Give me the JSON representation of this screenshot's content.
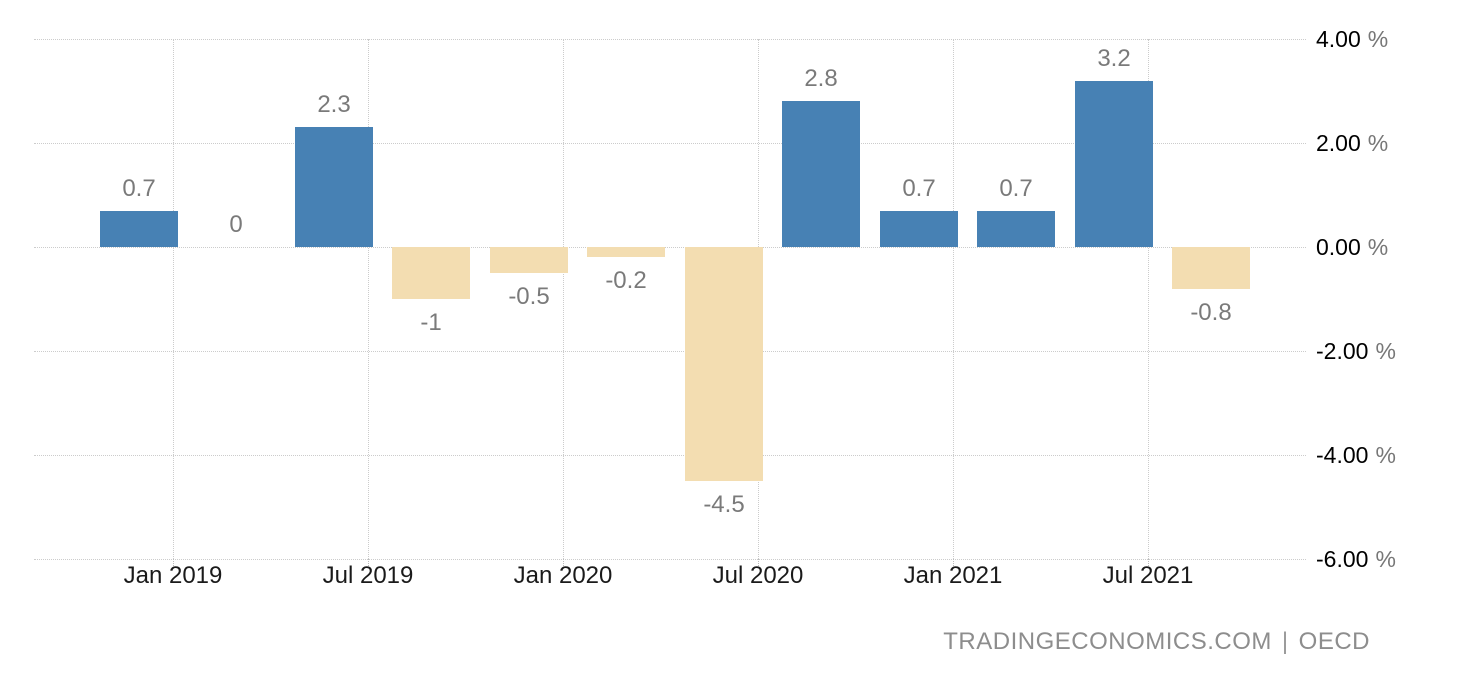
{
  "watermark": {
    "site": "TRADINGECONOMICS.COM",
    "separator": "|",
    "source": "OECD"
  },
  "chart_data": {
    "type": "bar",
    "values": [
      0.7,
      0,
      2.3,
      -1,
      -0.5,
      -0.2,
      -4.5,
      2.8,
      0.7,
      0.7,
      3.2,
      -0.8
    ],
    "bar_labels": [
      "0.7",
      "0",
      "2.3",
      "-1",
      "-0.5",
      "-0.2",
      "-4.5",
      "2.8",
      "0.7",
      "0.7",
      "3.2",
      "-0.8"
    ],
    "x_axis": {
      "tick_labels": [
        "Jan 2019",
        "Jul 2019",
        "Jan 2020",
        "Jul 2020",
        "Jan 2021",
        "Jul 2021"
      ]
    },
    "y_axis": {
      "position": "right",
      "unit": "%",
      "tick_values": [
        4,
        2,
        0,
        -2,
        -4,
        -6
      ],
      "tick_labels": [
        "4.00",
        "2.00",
        "0.00",
        "-2.00",
        "-4.00",
        "-6.00"
      ],
      "range": [
        -6,
        4
      ]
    },
    "grid": "dotted",
    "legend": "none",
    "colors": {
      "positive_bar": "#4781b4",
      "negative_bar": "#f3ddb1",
      "value_label": "#7a7a7a",
      "x_label": "#1a1a1a",
      "y_label_number": "#000000",
      "y_label_unit": "#777777",
      "grid": "#cccccc",
      "watermark": "#8d8d8d"
    }
  }
}
